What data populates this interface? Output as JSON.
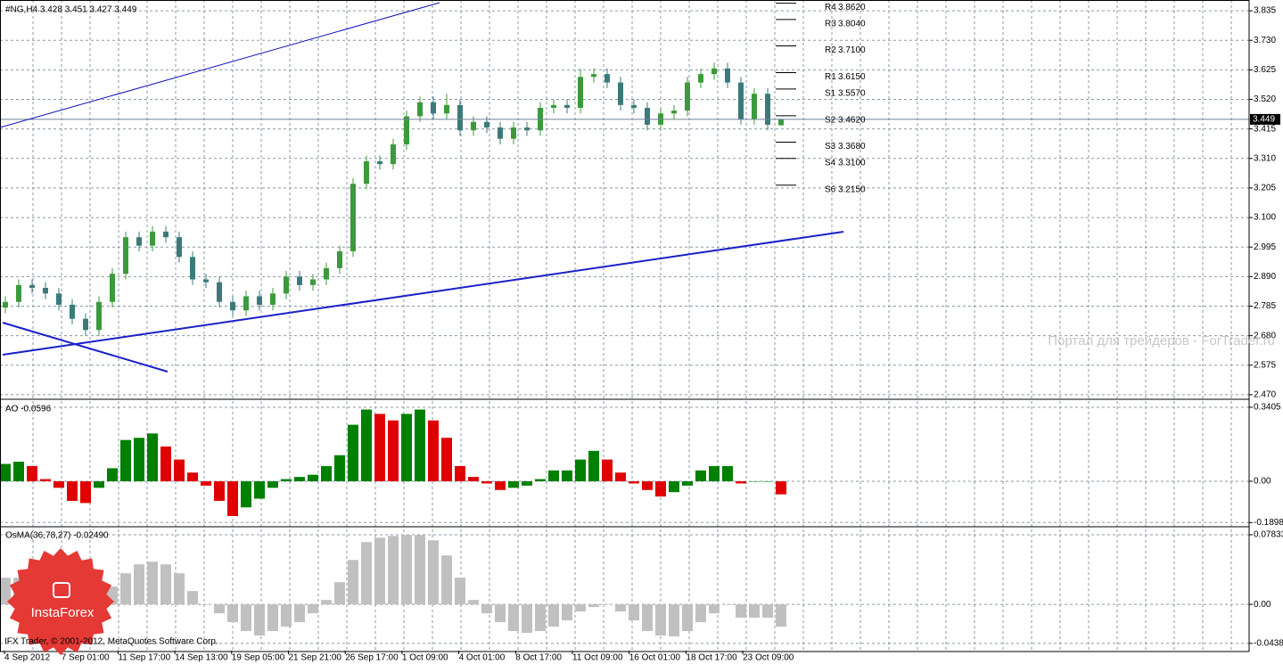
{
  "chart_data": [
    {
      "type": "candlestick",
      "title": "#NG,H4  3.428 3.451 3.427 3.449",
      "up_color": "#3c9a3c",
      "down_color": "#3c7a7a",
      "open": [
        2.78,
        2.8,
        2.86,
        2.85,
        2.83,
        2.79,
        2.74,
        2.7,
        2.8,
        2.9,
        3.03,
        3.0,
        3.05,
        3.03,
        2.96,
        2.88,
        2.87,
        2.8,
        2.77,
        2.82,
        2.79,
        2.83,
        2.89,
        2.86,
        2.88,
        2.92,
        2.98,
        3.22,
        3.3,
        3.29,
        3.36,
        3.46,
        3.51,
        3.47,
        3.5,
        3.41,
        3.44,
        3.42,
        3.38,
        3.42,
        3.41,
        3.49,
        3.5,
        3.49,
        3.6,
        3.61,
        3.58,
        3.5,
        3.49,
        3.43,
        3.47,
        3.48,
        3.58,
        3.61,
        3.63,
        3.58,
        3.45,
        3.54,
        3.428
      ],
      "high": [
        2.82,
        2.88,
        2.88,
        2.87,
        2.85,
        2.81,
        2.76,
        2.82,
        2.92,
        3.05,
        3.05,
        3.07,
        3.07,
        3.05,
        2.98,
        2.9,
        2.89,
        2.82,
        2.84,
        2.84,
        2.85,
        2.91,
        2.91,
        2.9,
        2.94,
        3.0,
        3.24,
        3.32,
        3.32,
        3.38,
        3.48,
        3.53,
        3.53,
        3.54,
        3.52,
        3.46,
        3.46,
        3.44,
        3.44,
        3.44,
        3.51,
        3.52,
        3.52,
        3.63,
        3.63,
        3.63,
        3.6,
        3.52,
        3.51,
        3.49,
        3.5,
        3.6,
        3.63,
        3.65,
        3.65,
        3.6,
        3.56,
        3.56,
        3.451
      ],
      "low": [
        2.76,
        2.78,
        2.83,
        2.81,
        2.77,
        2.72,
        2.68,
        2.68,
        2.78,
        2.88,
        2.98,
        2.98,
        3.01,
        2.94,
        2.86,
        2.85,
        2.78,
        2.75,
        2.75,
        2.77,
        2.77,
        2.81,
        2.84,
        2.84,
        2.86,
        2.9,
        2.96,
        3.2,
        3.27,
        3.27,
        3.34,
        3.44,
        3.45,
        3.45,
        3.39,
        3.39,
        3.4,
        3.36,
        3.36,
        3.39,
        3.39,
        3.47,
        3.47,
        3.47,
        3.58,
        3.56,
        3.48,
        3.47,
        3.41,
        3.41,
        3.45,
        3.46,
        3.56,
        3.59,
        3.56,
        3.43,
        3.43,
        3.41,
        3.427
      ],
      "close": [
        2.8,
        2.86,
        2.85,
        2.83,
        2.79,
        2.74,
        2.7,
        2.8,
        2.9,
        3.03,
        3.0,
        3.05,
        3.03,
        2.96,
        2.88,
        2.87,
        2.8,
        2.77,
        2.82,
        2.79,
        2.83,
        2.89,
        2.86,
        2.88,
        2.92,
        2.98,
        3.22,
        3.3,
        3.29,
        3.36,
        3.46,
        3.51,
        3.47,
        3.5,
        3.41,
        3.44,
        3.42,
        3.38,
        3.42,
        3.41,
        3.49,
        3.5,
        3.49,
        3.6,
        3.61,
        3.58,
        3.5,
        3.49,
        3.43,
        3.47,
        3.48,
        3.58,
        3.61,
        3.63,
        3.58,
        3.45,
        3.54,
        3.43,
        3.449
      ],
      "ylim": [
        2.457,
        3.867
      ],
      "yticks": [
        3.835,
        {
          "value": 3.73,
          "label": "3.730"
        },
        3.625,
        {
          "value": 3.52,
          "label": "3.520"
        },
        3.415,
        {
          "value": 3.31,
          "label": "3.310"
        },
        3.205,
        {
          "value": 3.1,
          "label": "3.100"
        },
        2.995,
        {
          "value": 2.89,
          "label": "2.890"
        },
        2.785,
        {
          "value": 2.68,
          "label": "2.680"
        },
        2.575,
        {
          "value": 2.47,
          "label": "2.470"
        }
      ],
      "last_price": 3.449,
      "levels": [
        {
          "name": "R4",
          "value": 3.862,
          "label": "3.8620"
        },
        {
          "name": "R3",
          "value": 3.804,
          "label": "3.8040"
        },
        {
          "name": "R2",
          "value": 3.71,
          "label": "3.7100"
        },
        {
          "name": "R1",
          "value": 3.615,
          "label": "3.6150"
        },
        {
          "name": "S1",
          "value": 3.557,
          "label": "3.5570"
        },
        {
          "name": "S2",
          "value": 3.462,
          "label": "3.4620"
        },
        {
          "name": "S3",
          "value": 3.368,
          "label": "3.3680"
        },
        {
          "name": "S4",
          "value": 3.31,
          "label": "3.3100"
        },
        {
          "name": "S6",
          "value": 3.215,
          "label": "3.2150"
        }
      ],
      "xtick_labels": [
        "4 Sep 2012",
        "7 Sep 01:00",
        "11 Sep 17:00",
        "14 Sep 13:00",
        "19 Sep 05:00",
        "21 Sep 21:00",
        "26 Sep 17:00",
        "1 Oct 09:00",
        "4 Oct 01:00",
        "8 Oct 17:00",
        "11 Oct 09:00",
        "16 Oct 01:00",
        "18 Oct 17:00",
        "23 Oct 09:00"
      ]
    },
    {
      "type": "bar",
      "title": "AO -0.0596",
      "up_color": "#008000",
      "down_color": "#e00000",
      "values": [
        0.08,
        0.09,
        0.07,
        0.01,
        -0.03,
        -0.09,
        -0.1,
        -0.03,
        0.06,
        0.19,
        0.2,
        0.22,
        0.16,
        0.1,
        0.04,
        -0.02,
        -0.09,
        -0.16,
        -0.12,
        -0.08,
        -0.03,
        0.01,
        0.02,
        0.03,
        0.07,
        0.12,
        0.26,
        0.33,
        0.31,
        0.28,
        0.31,
        0.33,
        0.28,
        0.2,
        0.07,
        0.02,
        -0.01,
        -0.04,
        -0.03,
        -0.02,
        0.01,
        0.05,
        0.05,
        0.1,
        0.14,
        0.1,
        0.04,
        -0.01,
        -0.04,
        -0.07,
        -0.05,
        -0.02,
        0.05,
        0.07,
        0.07,
        -0.01,
        0.0,
        0.0,
        -0.06
      ],
      "ylim": [
        -0.205,
        0.369
      ],
      "yticks": [
        0.3405,
        {
          "value": 0,
          "label": "0.00"
        },
        -0.1898
      ]
    },
    {
      "type": "bar",
      "title": "OsMA(36,78,27) -0.02490",
      "color": "#c0c0c0",
      "values": [
        0.03,
        0.03,
        0.03,
        0.02,
        0.01,
        0.005,
        0.0,
        0.01,
        0.02,
        0.035,
        0.045,
        0.048,
        0.045,
        0.035,
        0.015,
        0.0,
        -0.01,
        -0.02,
        -0.03,
        -0.035,
        -0.03,
        -0.025,
        -0.02,
        -0.01,
        0.005,
        0.025,
        0.05,
        0.07,
        0.075,
        0.077,
        0.078,
        0.078,
        0.072,
        0.055,
        0.03,
        0.005,
        -0.01,
        -0.02,
        -0.03,
        -0.032,
        -0.03,
        -0.025,
        -0.018,
        -0.008,
        -0.003,
        0.0,
        -0.008,
        -0.018,
        -0.03,
        -0.035,
        -0.036,
        -0.03,
        -0.02,
        -0.01,
        0.0,
        -0.015,
        -0.015,
        -0.015,
        -0.025
      ],
      "ylim": [
        -0.052,
        0.0863
      ],
      "yticks": [
        0.07833,
        {
          "value": 0,
          "label": "0.00"
        },
        -0.04383
      ]
    }
  ],
  "footer": "IFX Trader, © 2001-2012, MetaQuotes Software Corp.",
  "watermark": "Портал для трейдеров - ForTrader.ru",
  "logo": "InstaForex"
}
